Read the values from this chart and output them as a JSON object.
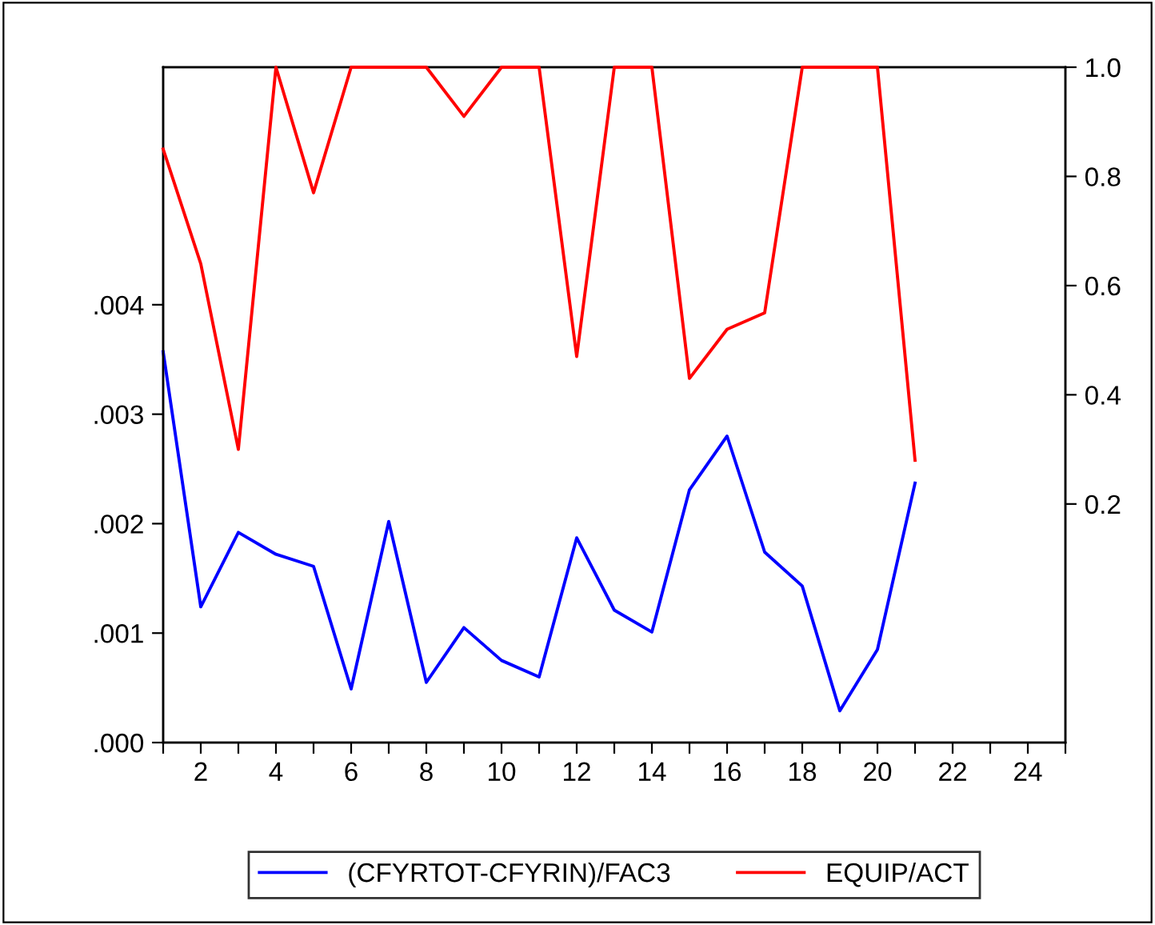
{
  "chart_data": {
    "type": "line",
    "x": [
      1,
      2,
      3,
      4,
      5,
      6,
      7,
      8,
      9,
      10,
      11,
      12,
      13,
      14,
      15,
      16,
      17,
      18,
      19,
      20,
      21
    ],
    "series": [
      {
        "name": "(CFYRTOT-CFYRIN)/FAC3",
        "color": "#0000ff",
        "values": [
          0.00357,
          0.00124,
          0.00192,
          0.00172,
          0.00161,
          0.00049,
          0.00202,
          0.00055,
          0.00105,
          0.00075,
          0.0006,
          0.00187,
          0.00121,
          0.00101,
          0.00231,
          0.0028,
          0.00174,
          0.00143,
          0.00029,
          0.00085,
          0.00237
        ]
      },
      {
        "name": "EQUIP/ACT",
        "color": "#ff0000",
        "axis": "y2",
        "values": [
          0.85,
          0.64,
          0.3,
          1.0,
          0.77,
          1.0,
          1.0,
          1.0,
          0.91,
          1.0,
          1.0,
          0.47,
          1.0,
          1.0,
          0.43,
          0.52,
          0.55,
          1.0,
          1.0,
          1.0,
          0.28
        ]
      }
    ],
    "xlim": [
      1,
      25
    ],
    "xticks": [
      {
        "value": 1,
        "label": null
      },
      2,
      {
        "value": 3,
        "label": null
      },
      4,
      {
        "value": 5,
        "label": null
      },
      6,
      {
        "value": 7,
        "label": null
      },
      8,
      {
        "value": 9,
        "label": null
      },
      10,
      {
        "value": 11,
        "label": null
      },
      12,
      {
        "value": 13,
        "label": null
      },
      14,
      {
        "value": 15,
        "label": null
      },
      16,
      {
        "value": 17,
        "label": null
      },
      18,
      {
        "value": 19,
        "label": null
      },
      20,
      {
        "value": 21,
        "label": null
      },
      22,
      {
        "value": 23,
        "label": null
      },
      24,
      {
        "value": 25,
        "label": null
      }
    ],
    "ylim": [
      0,
      0.00617
    ],
    "yticks": [
      {
        "value": 0,
        "label": ".000"
      },
      {
        "value": 0.001,
        "label": ".001"
      },
      {
        "value": 0.002,
        "label": ".002"
      },
      {
        "value": 0.003,
        "label": ".003"
      },
      {
        "value": 0.004,
        "label": ".004"
      }
    ],
    "y2lim": [
      -0.237,
      1.0
    ],
    "y2ticks": [
      0.2,
      0.4,
      0.6,
      0.8,
      {
        "value": 1,
        "label": "1.0"
      }
    ],
    "grid": false,
    "legend": "bottom",
    "line_style": "solid",
    "marker": "none"
  }
}
